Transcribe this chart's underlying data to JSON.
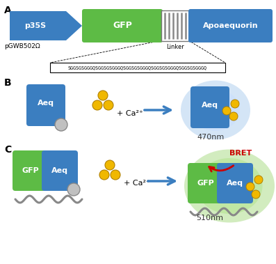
{
  "panel_A_label": "A",
  "panel_B_label": "B",
  "panel_C_label": "C",
  "blue_color": "#3B7EC0",
  "green_color": "#5DBB45",
  "gray_color": "#888888",
  "gold_color": "#F0B800",
  "red_color": "#CC0000",
  "linker_text": "SGGSGSGGGQSGGSGSGGGQSGGSGSGGGQSGGSGSGGGQSGGSGSGGGQ",
  "p35S_text": "p35S",
  "GFP_text": "GFP",
  "Linker_text": "Linker",
  "Apoaequorin_text": "Apoaequorin",
  "pGWB_text": "pGWB502Ω",
  "Aeq_text": "Aeq",
  "ca_text": "+ Ca²⁺",
  "nm470_text": "470nm",
  "nm510_text": "510nm",
  "bret_text": "BRET",
  "bg_color": "#ffffff"
}
